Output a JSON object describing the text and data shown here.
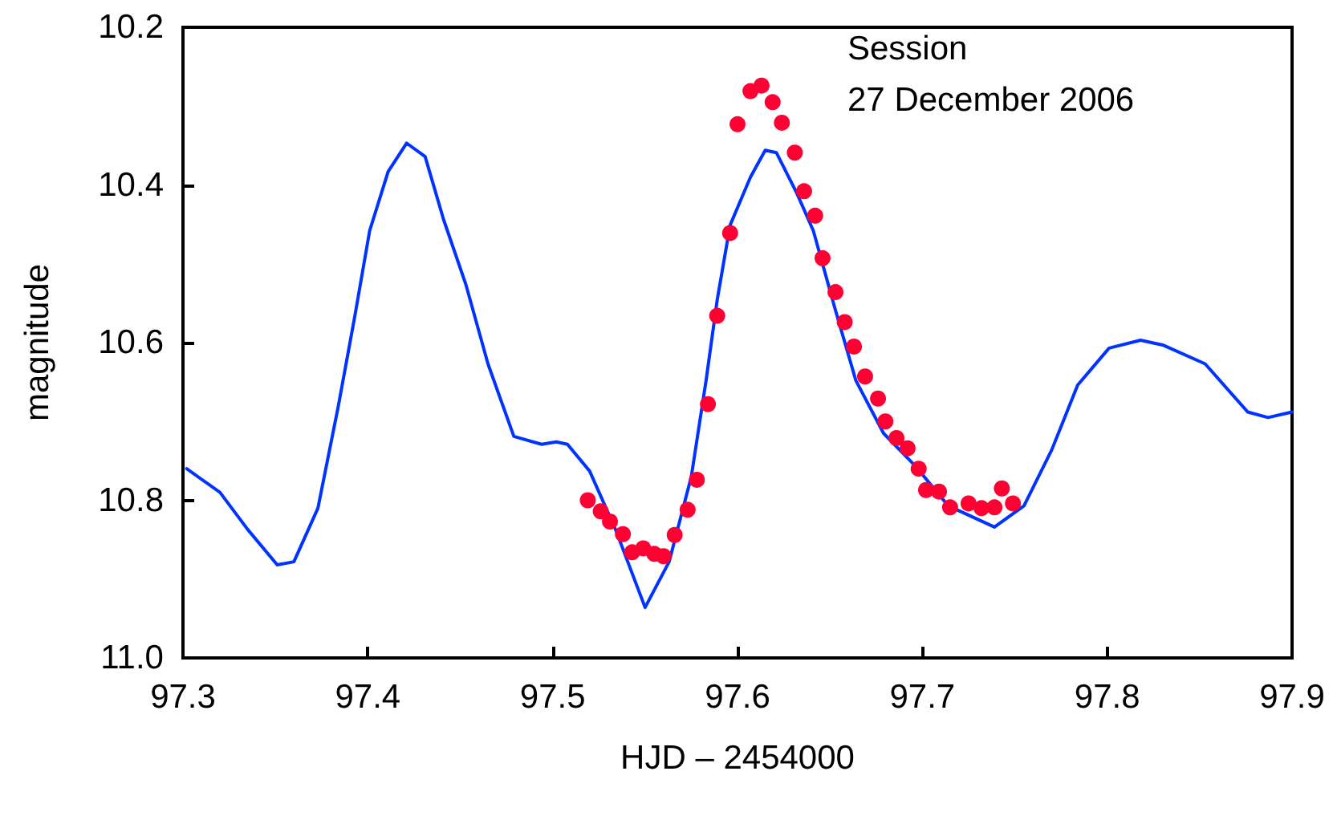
{
  "chart_data": {
    "type": "line",
    "xlabel": "HJD – 2454000",
    "ylabel": "magnitude",
    "annotations": [
      "Session",
      "27 December 2006"
    ],
    "xlim": [
      97.3,
      97.9
    ],
    "xticks": [
      97.3,
      97.4,
      97.5,
      97.6,
      97.7,
      97.8,
      97.9
    ],
    "ylim": [
      11.0,
      10.2
    ],
    "yticks": [
      10.2,
      10.4,
      10.6,
      10.8,
      {
        "value": 11,
        "label": "11.0"
      }
    ],
    "grid": false,
    "series": [
      {
        "color": "#0033ff",
        "marker": "none",
        "line_style": "solid",
        "x": [
          97.302,
          97.32,
          97.335,
          97.351,
          97.36,
          97.373,
          97.384,
          97.393,
          97.401,
          97.411,
          97.421,
          97.431,
          97.441,
          97.453,
          97.465,
          97.479,
          97.494,
          97.502,
          97.508,
          97.52,
          97.534,
          97.55,
          97.563,
          97.575,
          97.583,
          97.589,
          97.596,
          97.607,
          97.615,
          97.621,
          97.632,
          97.641,
          97.653,
          97.664,
          97.679,
          97.696,
          97.714,
          97.739,
          97.755,
          97.77,
          97.784,
          97.801,
          97.818,
          97.83,
          97.853,
          97.876,
          97.887,
          97.9
        ],
        "values": [
          10.76,
          10.79,
          10.837,
          10.882,
          10.878,
          10.81,
          10.681,
          10.566,
          10.458,
          10.383,
          10.347,
          10.364,
          10.444,
          10.526,
          10.627,
          10.719,
          10.729,
          10.726,
          10.729,
          10.763,
          10.837,
          10.936,
          10.878,
          10.77,
          10.648,
          10.546,
          10.451,
          10.39,
          10.356,
          10.359,
          10.41,
          10.458,
          10.559,
          10.648,
          10.715,
          10.756,
          10.807,
          10.834,
          10.807,
          10.736,
          10.654,
          10.607,
          10.597,
          10.603,
          10.627,
          10.688,
          10.695,
          10.688
        ]
      },
      {
        "type": "scatter",
        "color": "#ff0033",
        "marker": "circle",
        "x": [
          97.519,
          97.526,
          97.531,
          97.538,
          97.543,
          97.549,
          97.555,
          97.56,
          97.566,
          97.573,
          97.578,
          97.584,
          97.589,
          97.596,
          97.6,
          97.607,
          97.613,
          97.619,
          97.624,
          97.631,
          97.636,
          97.642,
          97.646,
          97.653,
          97.658,
          97.663,
          97.669,
          97.676,
          97.68,
          97.686,
          97.692,
          97.698,
          97.702,
          97.709,
          97.715,
          97.725,
          97.732,
          97.739,
          97.743,
          97.749
        ],
        "values": [
          10.8,
          10.814,
          10.827,
          10.843,
          10.866,
          10.861,
          10.868,
          10.871,
          10.844,
          10.812,
          10.774,
          10.678,
          10.566,
          10.461,
          10.323,
          10.281,
          10.274,
          10.295,
          10.321,
          10.359,
          10.408,
          10.439,
          10.493,
          10.536,
          10.574,
          10.605,
          10.643,
          10.671,
          10.7,
          10.721,
          10.734,
          10.76,
          10.787,
          10.789,
          10.809,
          10.804,
          10.81,
          10.809,
          10.785,
          10.804
        ]
      }
    ]
  }
}
